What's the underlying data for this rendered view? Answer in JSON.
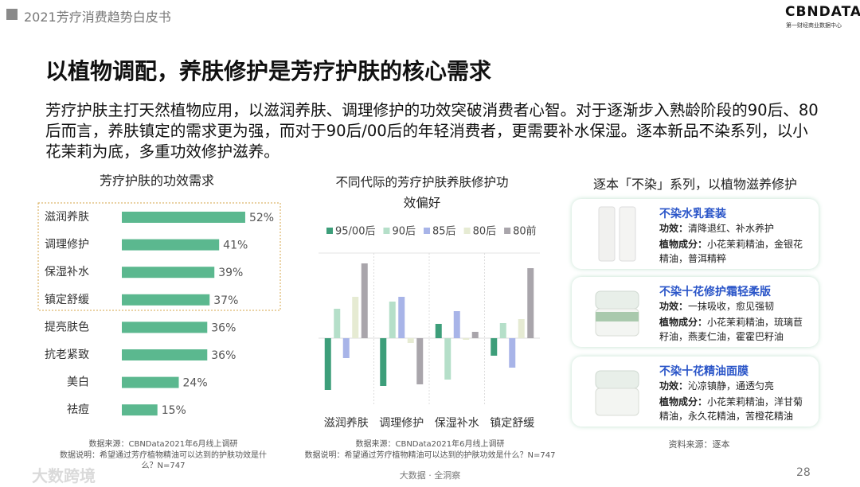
{
  "header": {
    "report": "2021芳疗消费趋势白皮书",
    "logo": "CBNDATA",
    "logo_sub": "第一财经商业数据中心"
  },
  "title": "以植物调配，养肤修护是芳疗护肤的核心需求",
  "body": "芳疗护肤主打天然植物应用，以滋润养肤、调理修护的功效突破消费者心智。对于逐渐步入熟龄阶段的90后、80后而言，养肤镇定的需求更为强，而对于90后/00后的年轻消费者，更需要补水保湿。逐本新品不染系列，以小花茉莉为底，多重功效修护滋养。",
  "chart_data": [
    {
      "type": "hbar",
      "title": "芳疗护肤的功效需求",
      "color": "#5bb88f",
      "categories": [
        "滋润养肤",
        "调理修护",
        "保湿补水",
        "镇定舒缓",
        "提亮肤色",
        "抗老紧致",
        "美白",
        "祛痘"
      ],
      "values": [
        52,
        41,
        39,
        37,
        36,
        36,
        24,
        15
      ],
      "value_labels": [
        "52%",
        "41%",
        "39%",
        "37%",
        "36%",
        "36%",
        "24%",
        "15%"
      ],
      "source": "数据来源：CBNData2021年6月线上调研",
      "note": "数据说明：希望通过芳疗植物精油可以达到的护肤功效是什么？N=747"
    },
    {
      "type": "grouped_bar",
      "title": "不同代际的芳疗护肤养肤修护功效偏好",
      "categories": [
        "滋润养肤",
        "调理修护",
        "保湿补水",
        "镇定舒缓"
      ],
      "series": [
        {
          "name": "95/00后",
          "color": "#3d9e7a",
          "values": [
            -65,
            -60,
            18,
            -22
          ]
        },
        {
          "name": "90后",
          "color": "#b5dfc9",
          "values": [
            37,
            46,
            -52,
            19
          ]
        },
        {
          "name": "85后",
          "color": "#a8b4e8",
          "values": [
            -25,
            52,
            34,
            -37
          ]
        },
        {
          "name": "80后",
          "color": "#e6ebd3",
          "values": [
            52,
            -6,
            -2,
            24
          ]
        },
        {
          "name": "80前",
          "color": "#a9a5ab",
          "values": [
            94,
            -58,
            8,
            88
          ]
        }
      ],
      "source": "数据来源：CBNData2021年6月线上调研",
      "note": "数据说明：希望通过芳疗植物精油可以达到的护肤功效是什么？N=747"
    }
  ],
  "products": {
    "title": "逐本「不染」系列，以植物滋养修护",
    "items": [
      {
        "name": "不染水乳套装",
        "efficacy_label": "功效：",
        "efficacy": "清降退红、补水养护",
        "ingredients_label": "植物成分：",
        "ingredients": "小花茉莉精油，金银花精油，普洱精粹"
      },
      {
        "name": "不染十花修护霜轻柔版",
        "efficacy_label": "功效：",
        "efficacy": "一抹吸收，愈见强韧",
        "ingredients_label": "植物成分：",
        "ingredients": "小花茉莉精油，琉璃苣籽油，燕麦仁油，霍霍巴籽油"
      },
      {
        "name": "不染十花精油面膜",
        "efficacy_label": "功效：",
        "efficacy": "沁凉镇静，通透匀亮",
        "ingredients_label": "植物成分：",
        "ingredients": "小花茉莉精油，洋甘菊精油，永久花精油，苦橙花精油"
      }
    ],
    "source": "资料来源：逐本"
  },
  "footer": {
    "tagline": "大数据 · 全洞察",
    "page": "28",
    "watermark": "大数跨境"
  }
}
